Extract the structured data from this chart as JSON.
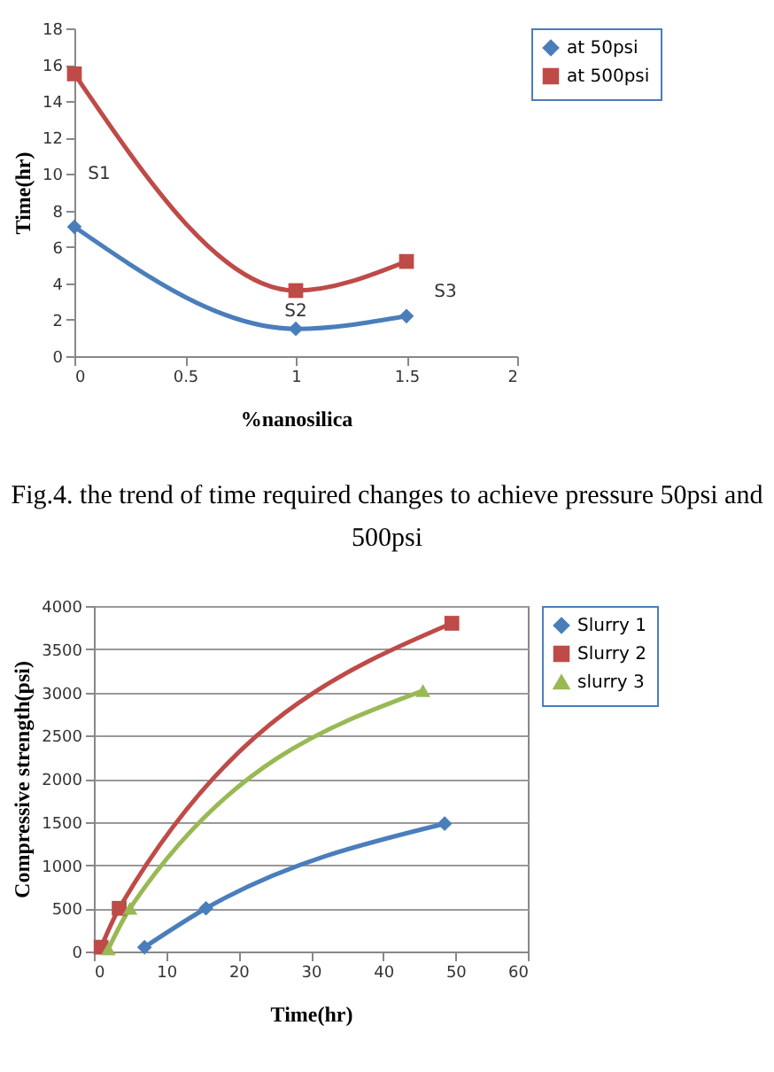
{
  "chart_data": [
    {
      "type": "line",
      "xlabel": "%nanosilica",
      "ylabel": "Time(hr)",
      "xlim": [
        0,
        2
      ],
      "xticks": [
        0,
        0.5,
        1,
        1.5,
        2
      ],
      "ylim": [
        0,
        18
      ],
      "yticks": [
        0,
        2,
        4,
        6,
        8,
        10,
        12,
        14,
        16,
        18
      ],
      "grid": false,
      "legend": "right",
      "x": [
        0,
        1,
        1.5
      ],
      "series": [
        {
          "name": "at 50psi",
          "color": "#4a7ebb",
          "marker": "diamond",
          "values": [
            7.1,
            1.5,
            2.2
          ]
        },
        {
          "name": "at 500psi",
          "color": "#be4b48",
          "marker": "square",
          "values": [
            15.5,
            3.6,
            5.2
          ]
        }
      ],
      "annotations": [
        {
          "text": "S1",
          "x": 0,
          "y": 7.1
        },
        {
          "text": "S2",
          "x": 1,
          "y": 1.5
        },
        {
          "text": "S3",
          "x": 1.5,
          "y": 2.2
        },
        "Fig.4. the trend of time required changes to achieve pressure 50psi and 500psi"
      ]
    },
    {
      "type": "line",
      "xlabel": "Time(hr)",
      "ylabel": "Compressive strength(psi)",
      "xlim": [
        0,
        60
      ],
      "xticks": [
        0,
        10,
        20,
        30,
        40,
        50,
        60
      ],
      "ylim": [
        0,
        4000
      ],
      "yticks": [
        0,
        500,
        1000,
        1500,
        2000,
        2500,
        3000,
        3500,
        4000
      ],
      "grid": "y",
      "legend": "right",
      "series": [
        {
          "name": "Slurry 1",
          "color": "#4a7ebb",
          "marker": "diamond",
          "x": [
            7,
            15.5,
            48.5
          ],
          "values": [
            50,
            500,
            1480
          ]
        },
        {
          "name": "Slurry 2",
          "color": "#be4b48",
          "marker": "square",
          "x": [
            1,
            3.5,
            49.5
          ],
          "values": [
            50,
            500,
            3800
          ]
        },
        {
          "name": "slurry 3",
          "color": "#98b954",
          "marker": "triangle",
          "x": [
            2,
            5,
            45.5
          ],
          "values": [
            30,
            500,
            3020
          ]
        }
      ]
    }
  ]
}
